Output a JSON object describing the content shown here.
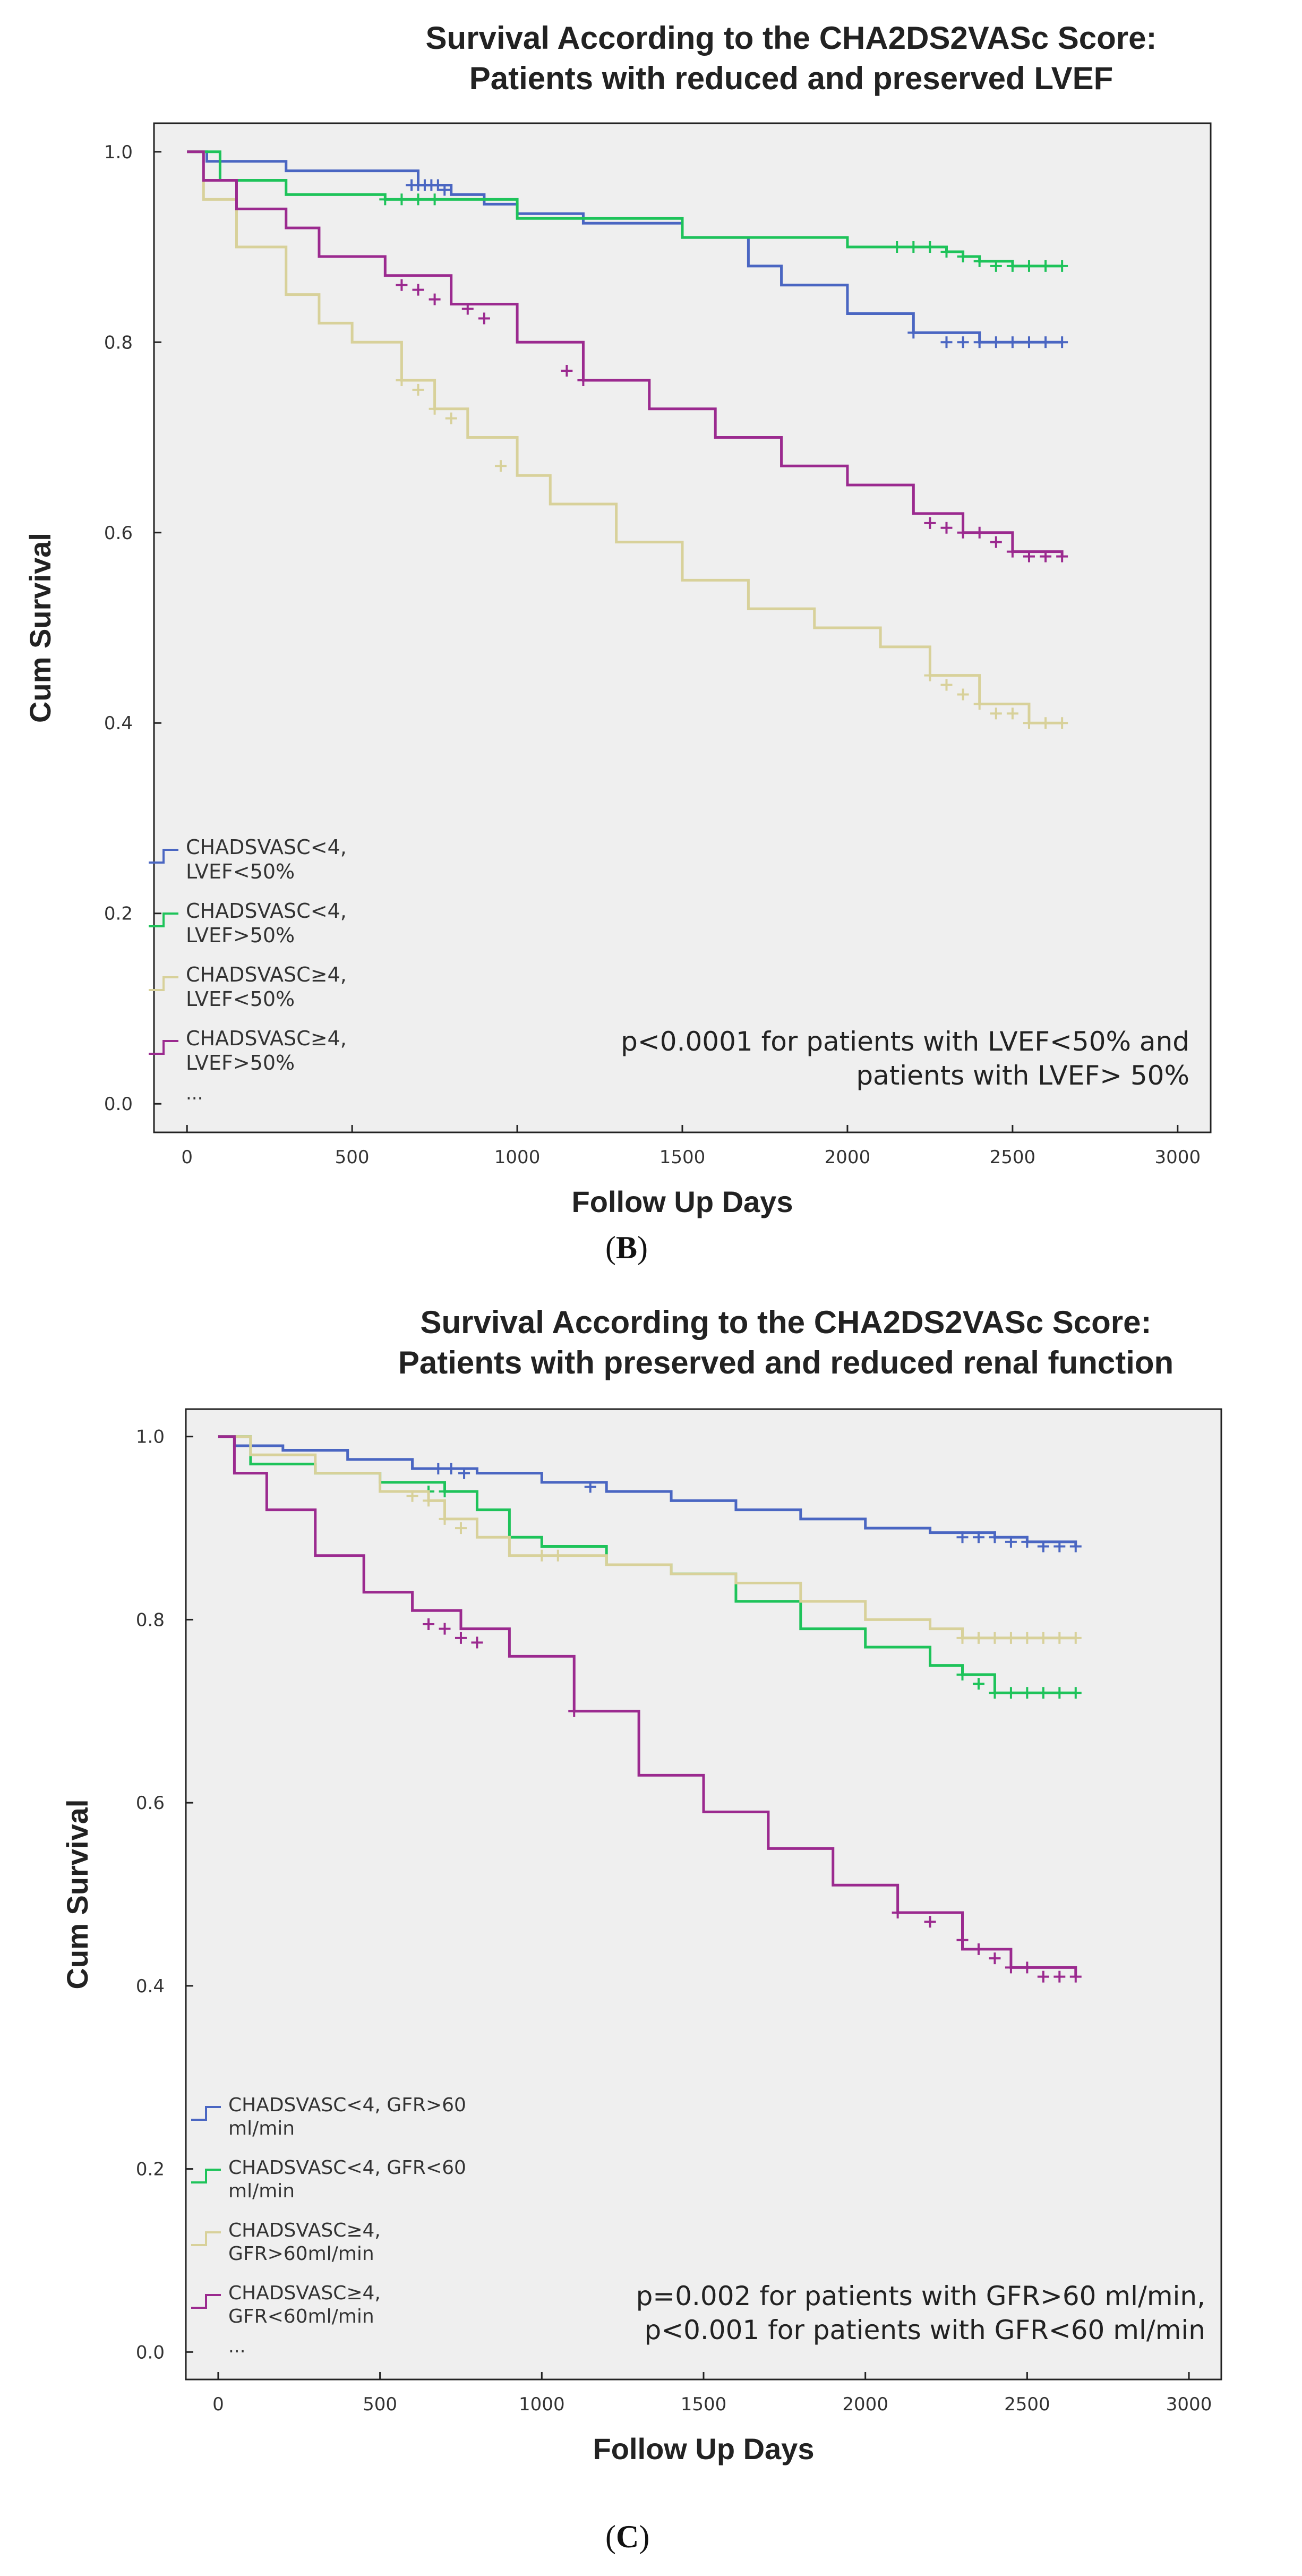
{
  "chart_data": [
    {
      "type": "line",
      "panel": "B",
      "panel_label": "B",
      "title_line1": "Survival According to the CHA2DS2VASc Score:",
      "title_line2": "Patients with reduced and preserved LVEF",
      "xlabel": "Follow Up Days",
      "ylabel": "Cum Survival",
      "xlim": [
        -100,
        3100
      ],
      "ylim": [
        -0.03,
        1.03
      ],
      "xticks": [
        0,
        500,
        1000,
        1500,
        2000,
        2500,
        3000
      ],
      "yticks": [
        0.0,
        0.2,
        0.4,
        0.6,
        0.8,
        1.0
      ],
      "ytick_labels": [
        "0.0",
        "0.2",
        "0.4",
        "0.6",
        "0.8",
        "1.0"
      ],
      "grid": false,
      "legend_position": "bottom-left",
      "legend_more": "...",
      "annotation_line1": "p<0.0001 for patients with LVEF<50% and",
      "annotation_line2": "patients with LVEF> 50%",
      "series": [
        {
          "name": "CHADSVASC<4, LVEF<50%",
          "label_line1": "CHADSVASC<4,",
          "label_line2": "LVEF<50%",
          "color": "#4a66c2",
          "x": [
            0,
            60,
            300,
            700,
            800,
            900,
            1000,
            1200,
            1500,
            1700,
            1800,
            2000,
            2200,
            2400,
            2500,
            2650
          ],
          "y": [
            1.0,
            0.99,
            0.98,
            0.965,
            0.955,
            0.945,
            0.935,
            0.925,
            0.91,
            0.88,
            0.86,
            0.83,
            0.81,
            0.8,
            0.8,
            0.8
          ],
          "censor_x": [
            680,
            700,
            720,
            740,
            760,
            780,
            2200,
            2300,
            2350,
            2400,
            2450,
            2500,
            2550,
            2600,
            2650
          ],
          "censor_y": [
            0.965,
            0.965,
            0.965,
            0.965,
            0.965,
            0.96,
            0.81,
            0.8,
            0.8,
            0.8,
            0.8,
            0.8,
            0.8,
            0.8,
            0.8
          ]
        },
        {
          "name": "CHADSVASC<4, LVEF>50%",
          "label_line1": "CHADSVASC<4,",
          "label_line2": "LVEF>50%",
          "color": "#1ec35a",
          "x": [
            0,
            100,
            300,
            600,
            1000,
            1500,
            2000,
            2200,
            2300,
            2350,
            2400,
            2500,
            2650
          ],
          "y": [
            1.0,
            0.97,
            0.955,
            0.95,
            0.93,
            0.91,
            0.9,
            0.9,
            0.895,
            0.89,
            0.885,
            0.88,
            0.88
          ],
          "censor_x": [
            600,
            650,
            700,
            750,
            2150,
            2200,
            2250,
            2300,
            2350,
            2400,
            2450,
            2500,
            2550,
            2600,
            2650
          ],
          "censor_y": [
            0.95,
            0.95,
            0.95,
            0.95,
            0.9,
            0.9,
            0.9,
            0.895,
            0.89,
            0.885,
            0.88,
            0.88,
            0.88,
            0.88,
            0.88
          ]
        },
        {
          "name": "CHADSVASC≥4, LVEF<50%",
          "label_line1": "CHADSVASC≥4,",
          "label_line2": "LVEF<50%",
          "color": "#d8d19a",
          "x": [
            0,
            50,
            150,
            300,
            400,
            500,
            650,
            750,
            850,
            1000,
            1100,
            1300,
            1500,
            1700,
            1900,
            2100,
            2250,
            2400,
            2550,
            2650
          ],
          "y": [
            1.0,
            0.95,
            0.9,
            0.85,
            0.82,
            0.8,
            0.76,
            0.73,
            0.7,
            0.66,
            0.63,
            0.59,
            0.55,
            0.52,
            0.5,
            0.48,
            0.45,
            0.42,
            0.4,
            0.4
          ],
          "censor_x": [
            650,
            700,
            750,
            800,
            950,
            2250,
            2300,
            2350,
            2400,
            2450,
            2500,
            2550,
            2600,
            2650
          ],
          "censor_y": [
            0.76,
            0.75,
            0.73,
            0.72,
            0.67,
            0.45,
            0.44,
            0.43,
            0.42,
            0.41,
            0.41,
            0.4,
            0.4,
            0.4
          ]
        },
        {
          "name": "CHADSVASC≥4, LVEF>50%",
          "label_line1": "CHADSVASC≥4,",
          "label_line2": "LVEF>50%",
          "color": "#9b2a8f",
          "x": [
            0,
            50,
            150,
            300,
            400,
            600,
            800,
            1000,
            1200,
            1400,
            1600,
            1800,
            2000,
            2200,
            2350,
            2500,
            2650
          ],
          "y": [
            1.0,
            0.97,
            0.94,
            0.92,
            0.89,
            0.87,
            0.84,
            0.8,
            0.76,
            0.73,
            0.7,
            0.67,
            0.65,
            0.62,
            0.6,
            0.58,
            0.575
          ],
          "censor_x": [
            650,
            700,
            750,
            850,
            900,
            1150,
            1200,
            2250,
            2300,
            2350,
            2400,
            2450,
            2500,
            2550,
            2600,
            2650
          ],
          "censor_y": [
            0.86,
            0.855,
            0.845,
            0.835,
            0.825,
            0.77,
            0.76,
            0.61,
            0.605,
            0.6,
            0.6,
            0.59,
            0.58,
            0.575,
            0.575,
            0.575
          ]
        }
      ]
    },
    {
      "type": "line",
      "panel": "C",
      "panel_label": "C",
      "title_line1": "Survival According to the CHA2DS2VASc Score:",
      "title_line2": "Patients with preserved and reduced renal function",
      "xlabel": "Follow Up Days",
      "ylabel": "Cum Survival",
      "xlim": [
        -100,
        3100
      ],
      "ylim": [
        -0.03,
        1.03
      ],
      "xticks": [
        0,
        500,
        1000,
        1500,
        2000,
        2500,
        3000
      ],
      "yticks": [
        0.0,
        0.2,
        0.4,
        0.6,
        0.8,
        1.0
      ],
      "ytick_labels": [
        "0.0",
        "0.2",
        "0.4",
        "0.6",
        "0.8",
        "1.0"
      ],
      "grid": false,
      "legend_position": "bottom-left",
      "legend_more": "...",
      "annotation_line1": "p=0.002 for patients with GFR>60 ml/min,",
      "annotation_line2": "p<0.001 for patients with GFR<60 ml/min",
      "series": [
        {
          "name": "CHADSVASC<4, GFR>60 ml/min",
          "label_line1": "CHADSVASC<4, GFR>60",
          "label_line2": "ml/min",
          "color": "#4a66c2",
          "x": [
            0,
            50,
            200,
            400,
            600,
            800,
            1000,
            1200,
            1400,
            1600,
            1800,
            2000,
            2200,
            2400,
            2500,
            2650
          ],
          "y": [
            1.0,
            0.99,
            0.985,
            0.975,
            0.965,
            0.96,
            0.95,
            0.94,
            0.93,
            0.92,
            0.91,
            0.9,
            0.895,
            0.89,
            0.885,
            0.88
          ],
          "censor_x": [
            680,
            720,
            760,
            1150,
            2300,
            2350,
            2400,
            2450,
            2500,
            2550,
            2600,
            2650
          ],
          "censor_y": [
            0.965,
            0.965,
            0.96,
            0.945,
            0.89,
            0.89,
            0.89,
            0.885,
            0.885,
            0.88,
            0.88,
            0.88
          ]
        },
        {
          "name": "CHADSVASC<4, GFR<60 ml/min",
          "label_line1": "CHADSVASC<4, GFR<60",
          "label_line2": "ml/min",
          "color": "#1ec35a",
          "x": [
            0,
            100,
            300,
            500,
            700,
            800,
            900,
            1000,
            1200,
            1400,
            1600,
            1800,
            2000,
            2200,
            2300,
            2400,
            2650
          ],
          "y": [
            1.0,
            0.97,
            0.96,
            0.95,
            0.94,
            0.92,
            0.89,
            0.88,
            0.86,
            0.85,
            0.82,
            0.79,
            0.77,
            0.75,
            0.74,
            0.72,
            0.72
          ],
          "censor_x": [
            650,
            700,
            2300,
            2350,
            2400,
            2450,
            2500,
            2550,
            2600,
            2650
          ],
          "censor_y": [
            0.94,
            0.94,
            0.74,
            0.73,
            0.72,
            0.72,
            0.72,
            0.72,
            0.72,
            0.72
          ]
        },
        {
          "name": "CHADSVASC≥4, GFR>60ml/min",
          "label_line1": "CHADSVASC≥4,",
          "label_line2": "GFR>60ml/min",
          "color": "#d8d19a",
          "x": [
            0,
            100,
            300,
            500,
            650,
            700,
            800,
            900,
            1200,
            1400,
            1600,
            1800,
            2000,
            2200,
            2300,
            2650
          ],
          "y": [
            1.0,
            0.98,
            0.96,
            0.94,
            0.93,
            0.91,
            0.89,
            0.87,
            0.86,
            0.85,
            0.84,
            0.82,
            0.8,
            0.79,
            0.78,
            0.78
          ],
          "censor_x": [
            600,
            650,
            700,
            750,
            1000,
            1050,
            2300,
            2350,
            2400,
            2450,
            2500,
            2550,
            2600,
            2650
          ],
          "censor_y": [
            0.935,
            0.93,
            0.91,
            0.9,
            0.87,
            0.87,
            0.78,
            0.78,
            0.78,
            0.78,
            0.78,
            0.78,
            0.78,
            0.78
          ]
        },
        {
          "name": "CHADSVASC≥4, GFR<60ml/min",
          "label_line1": "CHADSVASC≥4,",
          "label_line2": "GFR<60ml/min",
          "color": "#9b2a8f",
          "x": [
            0,
            50,
            150,
            300,
            450,
            600,
            750,
            900,
            1100,
            1300,
            1500,
            1700,
            1900,
            2100,
            2300,
            2450,
            2650
          ],
          "y": [
            1.0,
            0.96,
            0.92,
            0.87,
            0.83,
            0.81,
            0.79,
            0.76,
            0.7,
            0.63,
            0.59,
            0.55,
            0.51,
            0.48,
            0.44,
            0.42,
            0.41
          ],
          "censor_x": [
            650,
            700,
            750,
            800,
            1100,
            2100,
            2200,
            2300,
            2350,
            2400,
            2450,
            2500,
            2550,
            2600,
            2650
          ],
          "censor_y": [
            0.795,
            0.79,
            0.78,
            0.775,
            0.7,
            0.48,
            0.47,
            0.45,
            0.44,
            0.43,
            0.42,
            0.42,
            0.41,
            0.41,
            0.41
          ]
        }
      ]
    }
  ]
}
